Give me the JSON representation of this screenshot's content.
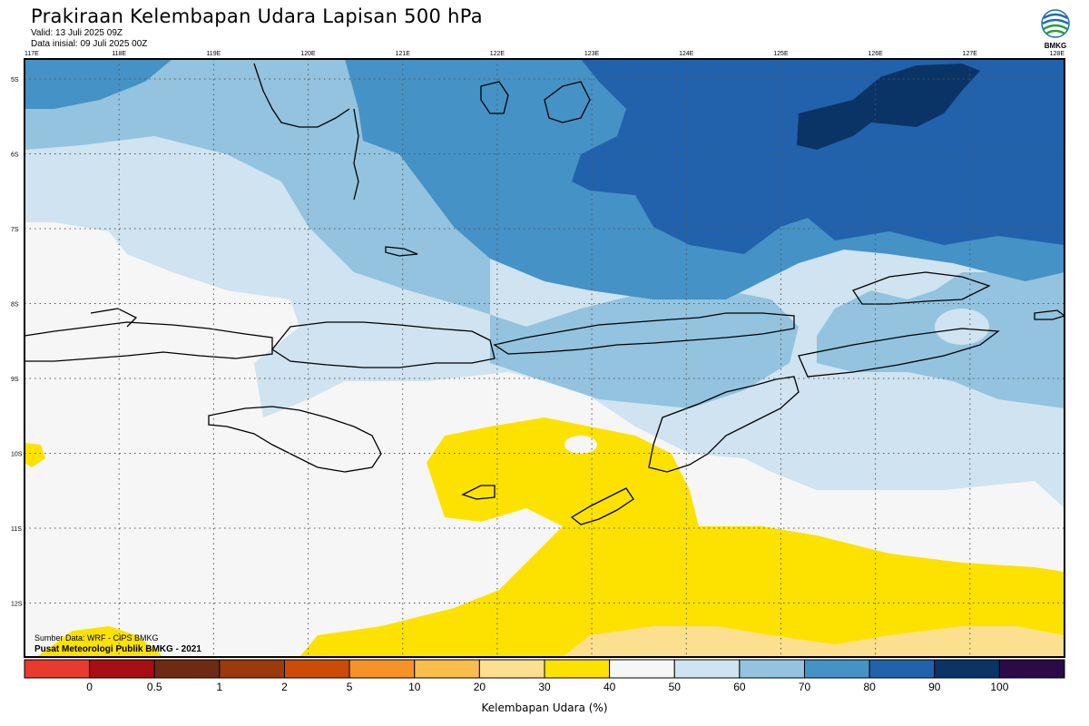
{
  "header": {
    "title": "Prakiraan Kelembapan Udara Lapisan 500 hPa",
    "valid": "Valid: 13 Juli 2025 09Z",
    "init": "Data inisial: 09 Juli 2025 00Z",
    "logo_text": "BMKG"
  },
  "map": {
    "lon_labels": [
      "117E",
      "118E",
      "119E",
      "120E",
      "121E",
      "122E",
      "123E",
      "124E",
      "125E",
      "126E",
      "127E",
      "128E"
    ],
    "lat_labels": [
      "5S",
      "6S",
      "7S",
      "8S",
      "9S",
      "10S",
      "11S",
      "12S"
    ],
    "credit_source": "Sumber Data: WRF - CIPS BMKG",
    "credit_org": "Pusat Meteorologi Publik BMKG - 2021"
  },
  "colorbar": {
    "ticks": [
      "0",
      "0.5",
      "1",
      "2",
      "5",
      "10",
      "20",
      "30",
      "40",
      "50",
      "60",
      "70",
      "80",
      "90",
      "100"
    ],
    "colors": [
      "#e83a2e",
      "#a70f12",
      "#6e2a12",
      "#9b3a0c",
      "#cc4c06",
      "#f7922a",
      "#fbbd4b",
      "#fde08f",
      "#fde200",
      "#f6f6f6",
      "#cfe3f0",
      "#93c3de",
      "#4592c6",
      "#2262ac",
      "#0b3466",
      "#2c0a4a"
    ],
    "label": "Kelembapan Udara (%)"
  },
  "legend_colors": {
    "dry_yellow": "#fde200",
    "light_yellow": "#fde08f",
    "white": "#f6f6f6",
    "blue_60": "#cfe3f0",
    "blue_70": "#93c3de",
    "blue_80": "#4592c6",
    "blue_90": "#2262ac",
    "navy_100": "#0b3466"
  }
}
